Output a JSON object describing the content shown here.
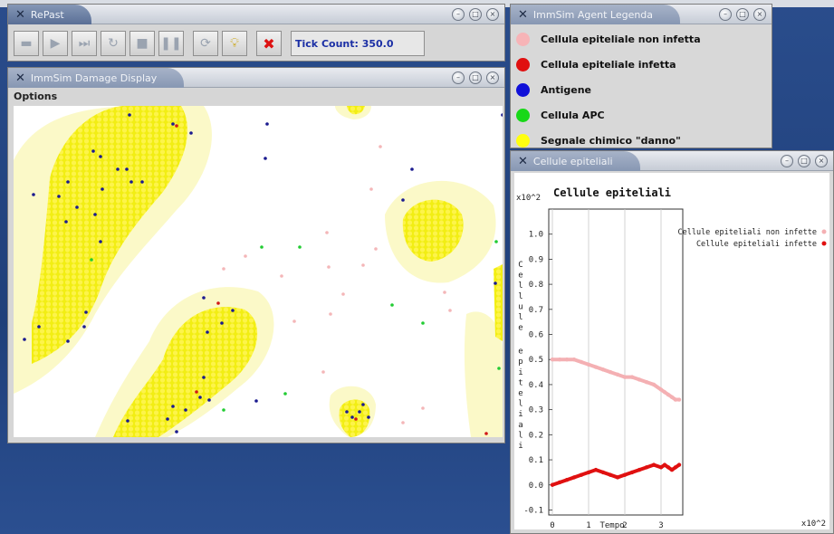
{
  "repast": {
    "title": "RePast",
    "tick_count": "Tick Count: 350.0",
    "toolbar_icons": [
      "folder-icon",
      "play-icon",
      "step-icon",
      "reset-icon",
      "stop-icon",
      "pause-icon",
      "refresh-icon",
      "bulb-icon",
      "exit-icon"
    ]
  },
  "damage": {
    "title": "ImmSim Damage Display",
    "menu": "Options"
  },
  "legend": {
    "title": "ImmSim Agent Legenda",
    "items": [
      {
        "label": "Cellula epiteliale non infetta",
        "color": "#f7b4b7"
      },
      {
        "label": "Cellula epiteliale infetta",
        "color": "#e01010"
      },
      {
        "label": "Antigene",
        "color": "#1010d8"
      },
      {
        "label": "Cellula APC",
        "color": "#18d818"
      },
      {
        "label": "Segnale chimico \"danno\"",
        "color": "#ffff10"
      }
    ]
  },
  "epi": {
    "title": "Cellule epiteliali"
  },
  "colors": {
    "yellow": "#f2ee13",
    "halo": "#fbf9c8",
    "antigen": "#1a1a8f",
    "apc": "#22cc33",
    "infected": "#d11818",
    "noninfected": "#f4b6b8"
  },
  "chart_data": {
    "type": "line",
    "title": "Cellule epiteliali",
    "xlabel": "Tempo",
    "ylabel": "Cellule epiteliali",
    "x_unit": "x10^2",
    "y_unit": "x10^2",
    "xlim": [
      -0.1,
      3.6
    ],
    "ylim": [
      -0.12,
      1.1
    ],
    "xticks": [
      "0",
      "1",
      "2",
      "3"
    ],
    "yticks": [
      "-0.1",
      "0.0",
      "0.1",
      "0.2",
      "0.3",
      "0.4",
      "0.5",
      "0.6",
      "0.7",
      "0.8",
      "0.9",
      "1.0"
    ],
    "series": [
      {
        "name": "Cellule epiteliali non infette",
        "color": "#f4b0b3",
        "x": [
          0,
          0.2,
          0.4,
          0.6,
          0.8,
          1.0,
          1.2,
          1.4,
          1.6,
          1.8,
          2.0,
          2.2,
          2.4,
          2.6,
          2.8,
          3.0,
          3.1,
          3.2,
          3.3,
          3.4,
          3.5
        ],
        "y": [
          0.5,
          0.5,
          0.5,
          0.5,
          0.49,
          0.48,
          0.47,
          0.46,
          0.45,
          0.44,
          0.43,
          0.43,
          0.42,
          0.41,
          0.4,
          0.38,
          0.37,
          0.36,
          0.35,
          0.34,
          0.34
        ]
      },
      {
        "name": "Cellule epiteliali infette",
        "color": "#e01010",
        "x": [
          0,
          0.2,
          0.4,
          0.6,
          0.8,
          1.0,
          1.2,
          1.4,
          1.6,
          1.8,
          2.0,
          2.2,
          2.4,
          2.6,
          2.8,
          3.0,
          3.1,
          3.2,
          3.3,
          3.4,
          3.5
        ],
        "y": [
          0.0,
          0.01,
          0.02,
          0.03,
          0.04,
          0.05,
          0.06,
          0.05,
          0.04,
          0.03,
          0.04,
          0.05,
          0.06,
          0.07,
          0.08,
          0.07,
          0.08,
          0.07,
          0.06,
          0.07,
          0.08
        ]
      }
    ]
  }
}
